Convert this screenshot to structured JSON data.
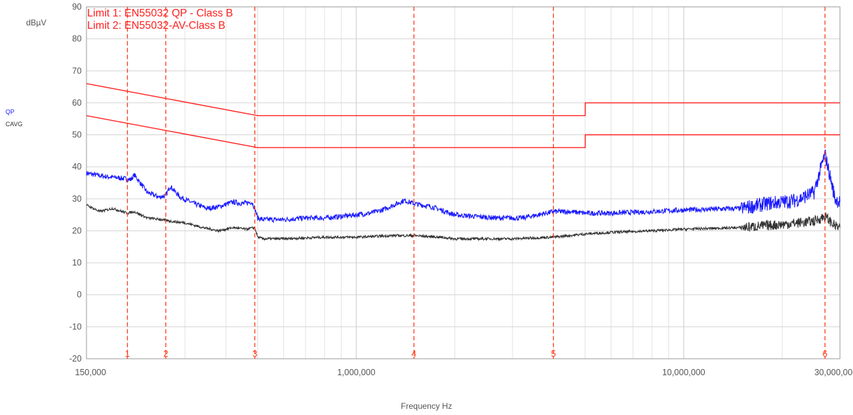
{
  "chart_data": {
    "type": "line",
    "ylabel": "dBµV",
    "xlabel": "Frequency Hz",
    "xscale": "log",
    "xlim": [
      150000,
      30000000
    ],
    "ylim": [
      -20,
      90
    ],
    "y_ticks": [
      -20,
      -10,
      0,
      10,
      20,
      30,
      40,
      50,
      60,
      70,
      80,
      90
    ],
    "x_tick_labels": [
      {
        "value": 150000,
        "label": "150,000"
      },
      {
        "value": 1000000,
        "label": "1,000,000"
      },
      {
        "value": 10000000,
        "label": "10,000,000"
      },
      {
        "value": 30000000,
        "label": "30,000,000"
      }
    ],
    "grid": true,
    "annotations": [
      "Limit 1: EN55032 QP - Class B",
      "Limit 2: EN55032-AV-Class B"
    ],
    "legend": [
      "QP",
      "CAVG"
    ],
    "limits": [
      {
        "name": "Limit 1: EN55032 QP - Class B",
        "color": "#ff2020",
        "x": [
          150000,
          500000,
          500000,
          5000000,
          5000000,
          30000000
        ],
        "y": [
          66,
          56,
          56,
          56,
          60,
          60
        ]
      },
      {
        "name": "Limit 2: EN55032-AV-Class B",
        "color": "#ff2020",
        "x": [
          150000,
          500000,
          500000,
          5000000,
          5000000,
          30000000
        ],
        "y": [
          56,
          46,
          46,
          46,
          50,
          50
        ]
      }
    ],
    "series": [
      {
        "name": "QP",
        "color": "#1a1aff",
        "x": [
          150000,
          170000,
          190000,
          205000,
          210000,
          230000,
          250000,
          262000,
          270000,
          290000,
          320000,
          350000,
          380000,
          420000,
          450000,
          480000,
          490000,
          500000,
          520000,
          600000,
          700000,
          800000,
          900000,
          1000000,
          1100000,
          1200000,
          1300000,
          1400000,
          1500000,
          1700000,
          2000000,
          2300000,
          2700000,
          3200000,
          3600000,
          4000000,
          4500000,
          5000000,
          6000000,
          8000000,
          10000000,
          15000000,
          18000000,
          20000000,
          22000000,
          25000000,
          27000000,
          29000000,
          30000000
        ],
        "y": [
          38,
          37,
          36.5,
          36,
          37.5,
          32,
          30.5,
          31,
          34,
          30.5,
          28.5,
          27,
          27.5,
          29,
          28.5,
          29,
          27,
          24,
          23.5,
          23.5,
          24,
          24,
          24.5,
          25,
          25.5,
          26.5,
          28,
          29.5,
          28.5,
          27.5,
          25,
          24.5,
          24,
          24,
          25,
          26,
          26,
          25.5,
          25.5,
          26,
          26.5,
          27,
          28.5,
          29,
          29.5,
          32,
          44,
          30,
          29
        ]
      },
      {
        "name": "CAVG",
        "color": "#333333",
        "x": [
          150000,
          165000,
          180000,
          200000,
          210000,
          230000,
          255000,
          270000,
          300000,
          340000,
          380000,
          420000,
          460000,
          490000,
          500000,
          520000,
          600000,
          800000,
          1000000,
          1300000,
          1500000,
          1800000,
          2000000,
          2500000,
          3000000,
          4000000,
          5000000,
          6000000,
          8000000,
          10000000,
          15000000,
          20000000,
          25000000,
          27000000,
          29000000,
          30000000
        ],
        "y": [
          28,
          26,
          27,
          25.5,
          26,
          24,
          23.5,
          23,
          22.5,
          21,
          20,
          21,
          20.5,
          21,
          18,
          17.5,
          17.5,
          18,
          18,
          18.5,
          18.5,
          18,
          17.5,
          17.5,
          17.5,
          18,
          19,
          19.5,
          20,
          20.5,
          21,
          22,
          23,
          24.5,
          21.5,
          21
        ]
      }
    ],
    "markers": [
      {
        "label": "1",
        "x": 200000
      },
      {
        "label": "2",
        "x": 262000
      },
      {
        "label": "3",
        "x": 490000
      },
      {
        "label": "4",
        "x": 1500000
      },
      {
        "label": "5",
        "x": 4000000
      },
      {
        "label": "6",
        "x": 27000000
      }
    ],
    "colors": {
      "limit": "#ff2020",
      "marker": "#ff3b1a",
      "grid": "#d4d4d4",
      "axis": "#555555"
    }
  }
}
